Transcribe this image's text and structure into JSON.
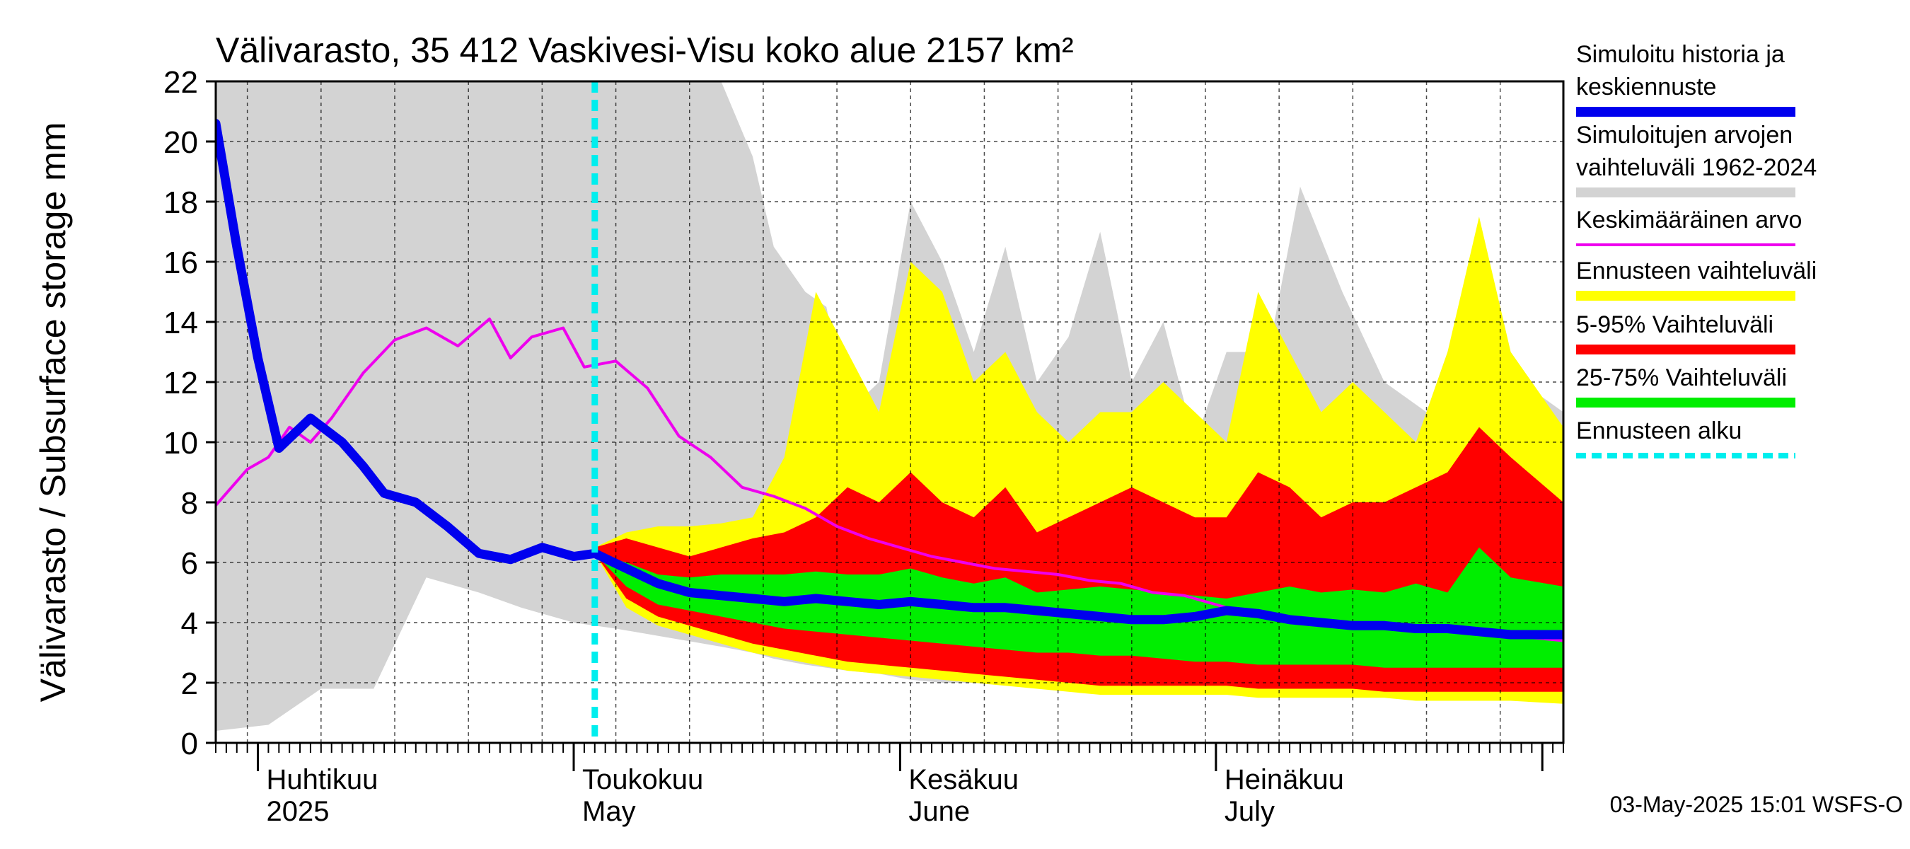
{
  "chart_data": {
    "type": "area",
    "title": "Välivarasto, 35 412 Vaskivesi-Visu koko alue 2157 km²",
    "ylabel": "Välivarasto / Subsurface storage  mm",
    "ylim": [
      0,
      22
    ],
    "yticks": [
      0,
      2,
      4,
      6,
      8,
      10,
      12,
      14,
      16,
      18,
      20,
      22
    ],
    "x_start": "2025-03-28",
    "x_end": "2025-08-03",
    "grid": true,
    "legend_position": "right",
    "month_labels": [
      {
        "top": "Huhtikuu",
        "bottom": "2025",
        "date": "2025-04-01"
      },
      {
        "top": "Toukokuu",
        "bottom": "May",
        "date": "2025-05-01"
      },
      {
        "top": "Kesäkuu",
        "bottom": "June",
        "date": "2025-06-01"
      },
      {
        "top": "Heinäkuu",
        "bottom": "July",
        "date": "2025-07-01"
      }
    ],
    "forecast_start": "2025-05-03",
    "timestamp": "03-May-2025 15:01 WSFS-O",
    "legend": [
      {
        "key": "sim",
        "label_lines": [
          "Simuloitu historia ja",
          "keskiennuste"
        ],
        "color": "#0000ee",
        "style": "thick"
      },
      {
        "key": "range",
        "label_lines": [
          "Simuloitujen arvojen",
          "vaihteluväli 1962-2024"
        ],
        "color": "#d3d3d3",
        "style": "thick"
      },
      {
        "key": "mean",
        "label_lines": [
          "Keskimääräinen arvo"
        ],
        "color": "#ee00ee",
        "style": "thin"
      },
      {
        "key": "fc",
        "label_lines": [
          "Ennusteen vaihteluväli"
        ],
        "color": "#ffff00",
        "style": "thick"
      },
      {
        "key": "p595",
        "label_lines": [
          "5-95% Vaihteluväli"
        ],
        "color": "#ff0000",
        "style": "thick"
      },
      {
        "key": "p2575",
        "label_lines": [
          "25-75% Vaihteluväli"
        ],
        "color": "#00ee00",
        "style": "thick"
      },
      {
        "key": "start",
        "label_lines": [
          "Ennusteen alku"
        ],
        "color": "#00eeee",
        "style": "dashed"
      }
    ],
    "colors": {
      "range": "#d3d3d3",
      "fc": "#ffff00",
      "p595": "#ff0000",
      "p2575": "#00ee00",
      "mean": "#ee00ee",
      "sim": "#0000ee",
      "start": "#00eeee"
    },
    "hist_range": {
      "x": [
        "2025-03-28",
        "2025-04-02",
        "2025-04-07",
        "2025-04-12",
        "2025-04-17",
        "2025-04-22",
        "2025-04-26",
        "2025-05-01",
        "2025-05-05",
        "2025-05-10",
        "2025-05-15",
        "2025-05-18",
        "2025-05-20",
        "2025-05-23",
        "2025-05-25",
        "2025-05-27",
        "2025-05-30",
        "2025-06-02",
        "2025-06-05",
        "2025-06-08",
        "2025-06-11",
        "2025-06-14",
        "2025-06-17",
        "2025-06-20",
        "2025-06-23",
        "2025-06-26",
        "2025-06-29",
        "2025-07-02",
        "2025-07-06",
        "2025-07-09",
        "2025-07-13",
        "2025-07-17",
        "2025-07-21",
        "2025-07-24",
        "2025-07-27",
        "2025-07-30",
        "2025-08-03"
      ],
      "upper": [
        22,
        22,
        22,
        22,
        22,
        22,
        22,
        22,
        22,
        22,
        22,
        19.5,
        16.5,
        15,
        14.5,
        11,
        12,
        18,
        16,
        13,
        16.5,
        12,
        13.5,
        17,
        12,
        14,
        10,
        13,
        13,
        18.5,
        15,
        12,
        11,
        14,
        13,
        12,
        11
      ],
      "lower": [
        0.4,
        0.6,
        1.8,
        1.8,
        5.5,
        5,
        4.5,
        4,
        3.8,
        3.5,
        3.2,
        3,
        2.8,
        2.6,
        2.5,
        2.4,
        2.3,
        2.1,
        2,
        2,
        2,
        1.9,
        1.9,
        2,
        2.2,
        2.1,
        2.1,
        2,
        2,
        1.9,
        1.9,
        1.8,
        1.8,
        1.8,
        1.7,
        1.7,
        1.7
      ]
    },
    "forecast_bands": {
      "x": [
        "2025-05-03",
        "2025-05-06",
        "2025-05-09",
        "2025-05-12",
        "2025-05-15",
        "2025-05-18",
        "2025-05-21",
        "2025-05-24",
        "2025-05-27",
        "2025-05-30",
        "2025-06-02",
        "2025-06-05",
        "2025-06-08",
        "2025-06-11",
        "2025-06-14",
        "2025-06-17",
        "2025-06-20",
        "2025-06-23",
        "2025-06-26",
        "2025-06-29",
        "2025-07-02",
        "2025-07-05",
        "2025-07-08",
        "2025-07-11",
        "2025-07-14",
        "2025-07-17",
        "2025-07-20",
        "2025-07-23",
        "2025-07-26",
        "2025-07-29",
        "2025-08-03"
      ],
      "fc_upper": [
        6.5,
        7,
        7.2,
        7.2,
        7.3,
        7.5,
        9.5,
        15,
        13,
        11,
        16,
        15,
        12,
        13,
        11,
        10,
        11,
        11,
        12,
        11,
        10,
        15,
        13,
        11,
        12,
        11,
        10,
        13,
        17.5,
        13,
        10.5
      ],
      "p95": [
        6.5,
        6.8,
        6.5,
        6.2,
        6.5,
        6.8,
        7,
        7.5,
        8.5,
        8,
        9,
        8,
        7.5,
        8.5,
        7,
        7.5,
        8,
        8.5,
        8,
        7.5,
        7.5,
        9,
        8.5,
        7.5,
        8,
        8,
        8.5,
        9,
        10.5,
        9.5,
        8
      ],
      "p75": [
        6.3,
        6,
        5.6,
        5.5,
        5.6,
        5.6,
        5.6,
        5.7,
        5.6,
        5.6,
        5.8,
        5.5,
        5.3,
        5.5,
        5,
        5.1,
        5.2,
        5.1,
        5,
        4.9,
        4.8,
        5,
        5.2,
        5,
        5.1,
        5,
        5.3,
        5,
        6.5,
        5.5,
        5.2
      ],
      "p25": [
        6.3,
        5.2,
        4.6,
        4.4,
        4.2,
        4.0,
        3.8,
        3.7,
        3.6,
        3.5,
        3.4,
        3.3,
        3.2,
        3.1,
        3,
        3,
        2.9,
        2.9,
        2.8,
        2.7,
        2.7,
        2.6,
        2.6,
        2.6,
        2.6,
        2.5,
        2.5,
        2.5,
        2.5,
        2.5,
        2.5
      ],
      "p5": [
        6.3,
        4.8,
        4.2,
        3.9,
        3.6,
        3.3,
        3.1,
        2.9,
        2.7,
        2.6,
        2.5,
        2.4,
        2.3,
        2.2,
        2.1,
        2,
        1.9,
        1.9,
        1.9,
        1.9,
        1.9,
        1.8,
        1.8,
        1.8,
        1.8,
        1.7,
        1.7,
        1.7,
        1.7,
        1.7,
        1.7
      ],
      "fc_lower": [
        6.3,
        4.5,
        3.9,
        3.6,
        3.3,
        3.0,
        2.8,
        2.6,
        2.4,
        2.3,
        2.2,
        2.1,
        2.0,
        1.9,
        1.8,
        1.7,
        1.6,
        1.6,
        1.6,
        1.6,
        1.6,
        1.5,
        1.5,
        1.5,
        1.5,
        1.5,
        1.4,
        1.4,
        1.4,
        1.4,
        1.3
      ]
    },
    "mean_series": {
      "x": [
        "2025-03-28",
        "2025-03-31",
        "2025-04-02",
        "2025-04-04",
        "2025-04-06",
        "2025-04-08",
        "2025-04-11",
        "2025-04-14",
        "2025-04-17",
        "2025-04-20",
        "2025-04-23",
        "2025-04-25",
        "2025-04-27",
        "2025-04-30",
        "2025-05-02",
        "2025-05-05",
        "2025-05-08",
        "2025-05-11",
        "2025-05-14",
        "2025-05-17",
        "2025-05-20",
        "2025-05-23",
        "2025-05-26",
        "2025-05-29",
        "2025-06-01",
        "2025-06-04",
        "2025-06-07",
        "2025-06-10",
        "2025-06-13",
        "2025-06-16",
        "2025-06-19",
        "2025-06-22",
        "2025-06-25",
        "2025-06-28",
        "2025-07-01",
        "2025-07-04",
        "2025-07-07",
        "2025-07-10",
        "2025-07-13",
        "2025-07-16",
        "2025-07-19",
        "2025-07-22",
        "2025-07-25",
        "2025-07-28",
        "2025-07-31",
        "2025-08-03"
      ],
      "values": [
        7.9,
        9.1,
        9.5,
        10.5,
        10.0,
        10.8,
        12.3,
        13.4,
        13.8,
        13.2,
        14.1,
        12.8,
        13.5,
        13.8,
        12.5,
        12.7,
        11.8,
        10.2,
        9.5,
        8.5,
        8.2,
        7.8,
        7.2,
        6.8,
        6.5,
        6.2,
        6.0,
        5.8,
        5.7,
        5.6,
        5.4,
        5.3,
        5.0,
        4.9,
        4.6,
        4.3,
        4.2,
        4.1,
        4.0,
        3.9,
        3.8,
        3.7,
        3.7,
        3.6,
        3.5,
        3.4
      ]
    },
    "sim_series": {
      "x": [
        "2025-03-28",
        "2025-03-30",
        "2025-04-01",
        "2025-04-03",
        "2025-04-06",
        "2025-04-09",
        "2025-04-11",
        "2025-04-13",
        "2025-04-16",
        "2025-04-19",
        "2025-04-22",
        "2025-04-25",
        "2025-04-28",
        "2025-05-01",
        "2025-05-03",
        "2025-05-06",
        "2025-05-09",
        "2025-05-12",
        "2025-05-15",
        "2025-05-18",
        "2025-05-21",
        "2025-05-24",
        "2025-05-27",
        "2025-05-30",
        "2025-06-02",
        "2025-06-05",
        "2025-06-08",
        "2025-06-11",
        "2025-06-14",
        "2025-06-17",
        "2025-06-20",
        "2025-06-23",
        "2025-06-26",
        "2025-06-29",
        "2025-07-02",
        "2025-07-05",
        "2025-07-08",
        "2025-07-11",
        "2025-07-14",
        "2025-07-17",
        "2025-07-20",
        "2025-07-23",
        "2025-07-26",
        "2025-07-29",
        "2025-08-03"
      ],
      "values": [
        20.6,
        16.5,
        12.8,
        9.8,
        10.8,
        10.0,
        9.2,
        8.3,
        8.0,
        7.2,
        6.3,
        6.1,
        6.5,
        6.2,
        6.3,
        5.8,
        5.3,
        5.0,
        4.9,
        4.8,
        4.7,
        4.8,
        4.7,
        4.6,
        4.7,
        4.6,
        4.5,
        4.5,
        4.4,
        4.3,
        4.2,
        4.1,
        4.1,
        4.2,
        4.4,
        4.3,
        4.1,
        4.0,
        3.9,
        3.9,
        3.8,
        3.8,
        3.7,
        3.6,
        3.6
      ]
    }
  }
}
